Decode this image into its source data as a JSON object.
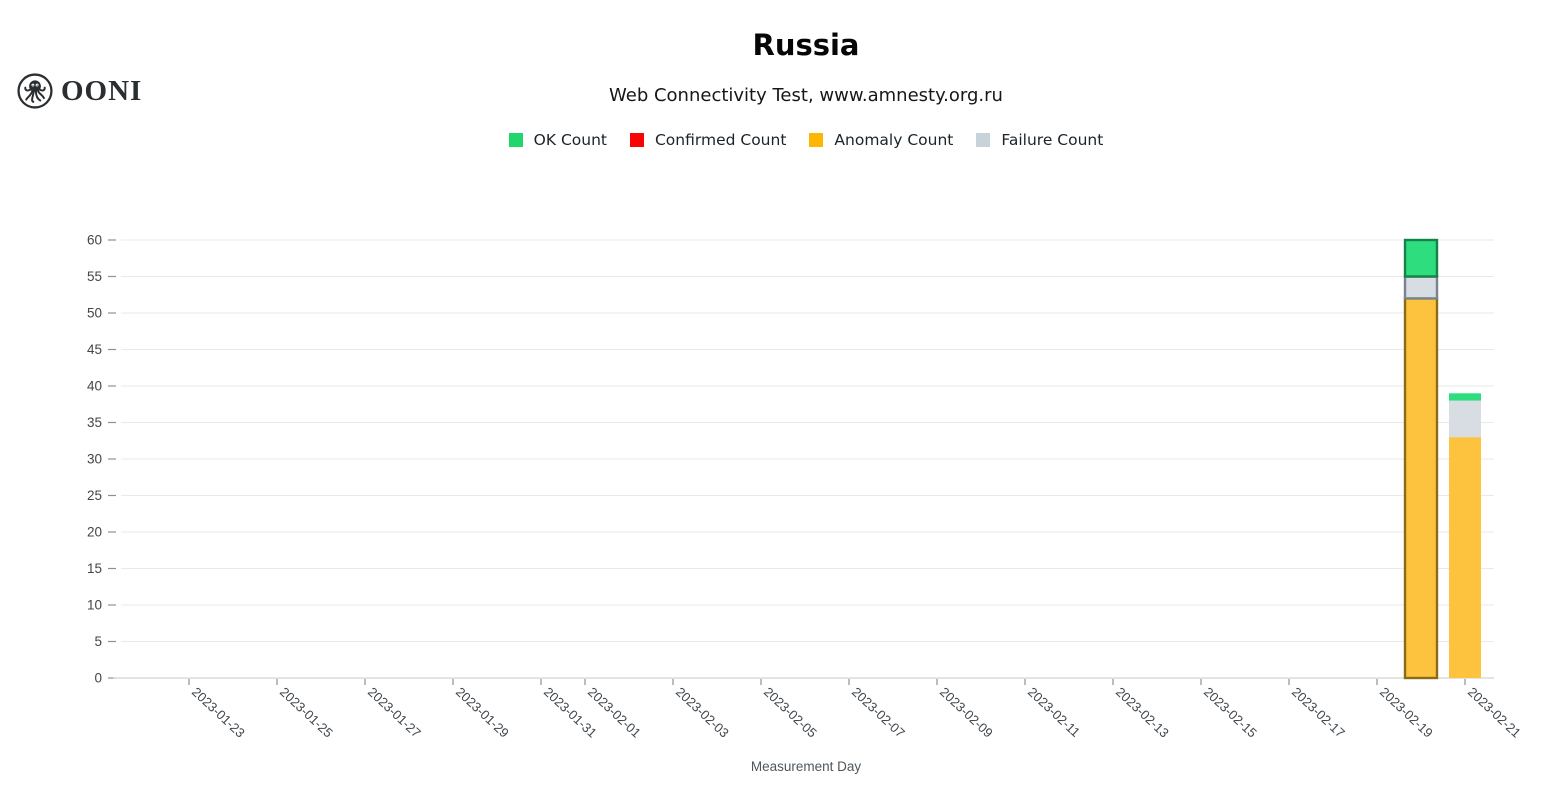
{
  "logo": {
    "brand": "OONI"
  },
  "header": {
    "title": "Russia",
    "subtitle": "Web Connectivity Test, www.amnesty.org.ru"
  },
  "chart_data": {
    "type": "bar",
    "stacked": true,
    "title": "Russia",
    "subtitle": "Web Connectivity Test, www.amnesty.org.ru",
    "xlabel": "Measurement Day",
    "ylabel": "",
    "ylim": [
      0,
      60
    ],
    "y_ticks": [
      0,
      5,
      10,
      15,
      20,
      25,
      30,
      35,
      40,
      45,
      50,
      55,
      60
    ],
    "grid": true,
    "legend_position": "top",
    "days": [
      "2023-01-23",
      "2023-01-24",
      "2023-01-25",
      "2023-01-26",
      "2023-01-27",
      "2023-01-28",
      "2023-01-29",
      "2023-01-30",
      "2023-01-31",
      "2023-02-01",
      "2023-02-02",
      "2023-02-03",
      "2023-02-04",
      "2023-02-05",
      "2023-02-06",
      "2023-02-07",
      "2023-02-08",
      "2023-02-09",
      "2023-02-10",
      "2023-02-11",
      "2023-02-12",
      "2023-02-13",
      "2023-02-14",
      "2023-02-15",
      "2023-02-16",
      "2023-02-17",
      "2023-02-18",
      "2023-02-19",
      "2023-02-20",
      "2023-02-21"
    ],
    "x_tick_labels": [
      "2023-01-23",
      "2023-01-25",
      "2023-01-27",
      "2023-01-29",
      "2023-01-31",
      "2023-02-01",
      "2023-02-03",
      "2023-02-05",
      "2023-02-07",
      "2023-02-09",
      "2023-02-11",
      "2023-02-13",
      "2023-02-15",
      "2023-02-17",
      "2023-02-19",
      "2023-02-21"
    ],
    "series": [
      {
        "name": "OK Count",
        "color": "#22d56c",
        "bar_color": "#2edd7e",
        "border_color": "#17814a",
        "points": {
          "2023-02-20": 5,
          "2023-02-21": 1
        }
      },
      {
        "name": "Confirmed Count",
        "color": "#f90404",
        "bar_color": "#f90404",
        "border_color": "#8f0101",
        "points": {}
      },
      {
        "name": "Anomaly Count",
        "color": "#ffb600",
        "bar_color": "#fec33e",
        "border_color": "#8a6c17",
        "points": {
          "2023-02-20": 52,
          "2023-02-21": 33
        }
      },
      {
        "name": "Failure Count",
        "color": "#c8d2d9",
        "bar_color": "#d7dde3",
        "border_color": "#79838b",
        "points": {
          "2023-02-20": 3,
          "2023-02-21": 5
        }
      }
    ],
    "stack_order": [
      "Anomaly Count",
      "Confirmed Count",
      "Failure Count",
      "OK Count"
    ],
    "highlighted_bar": "2023-02-20"
  }
}
